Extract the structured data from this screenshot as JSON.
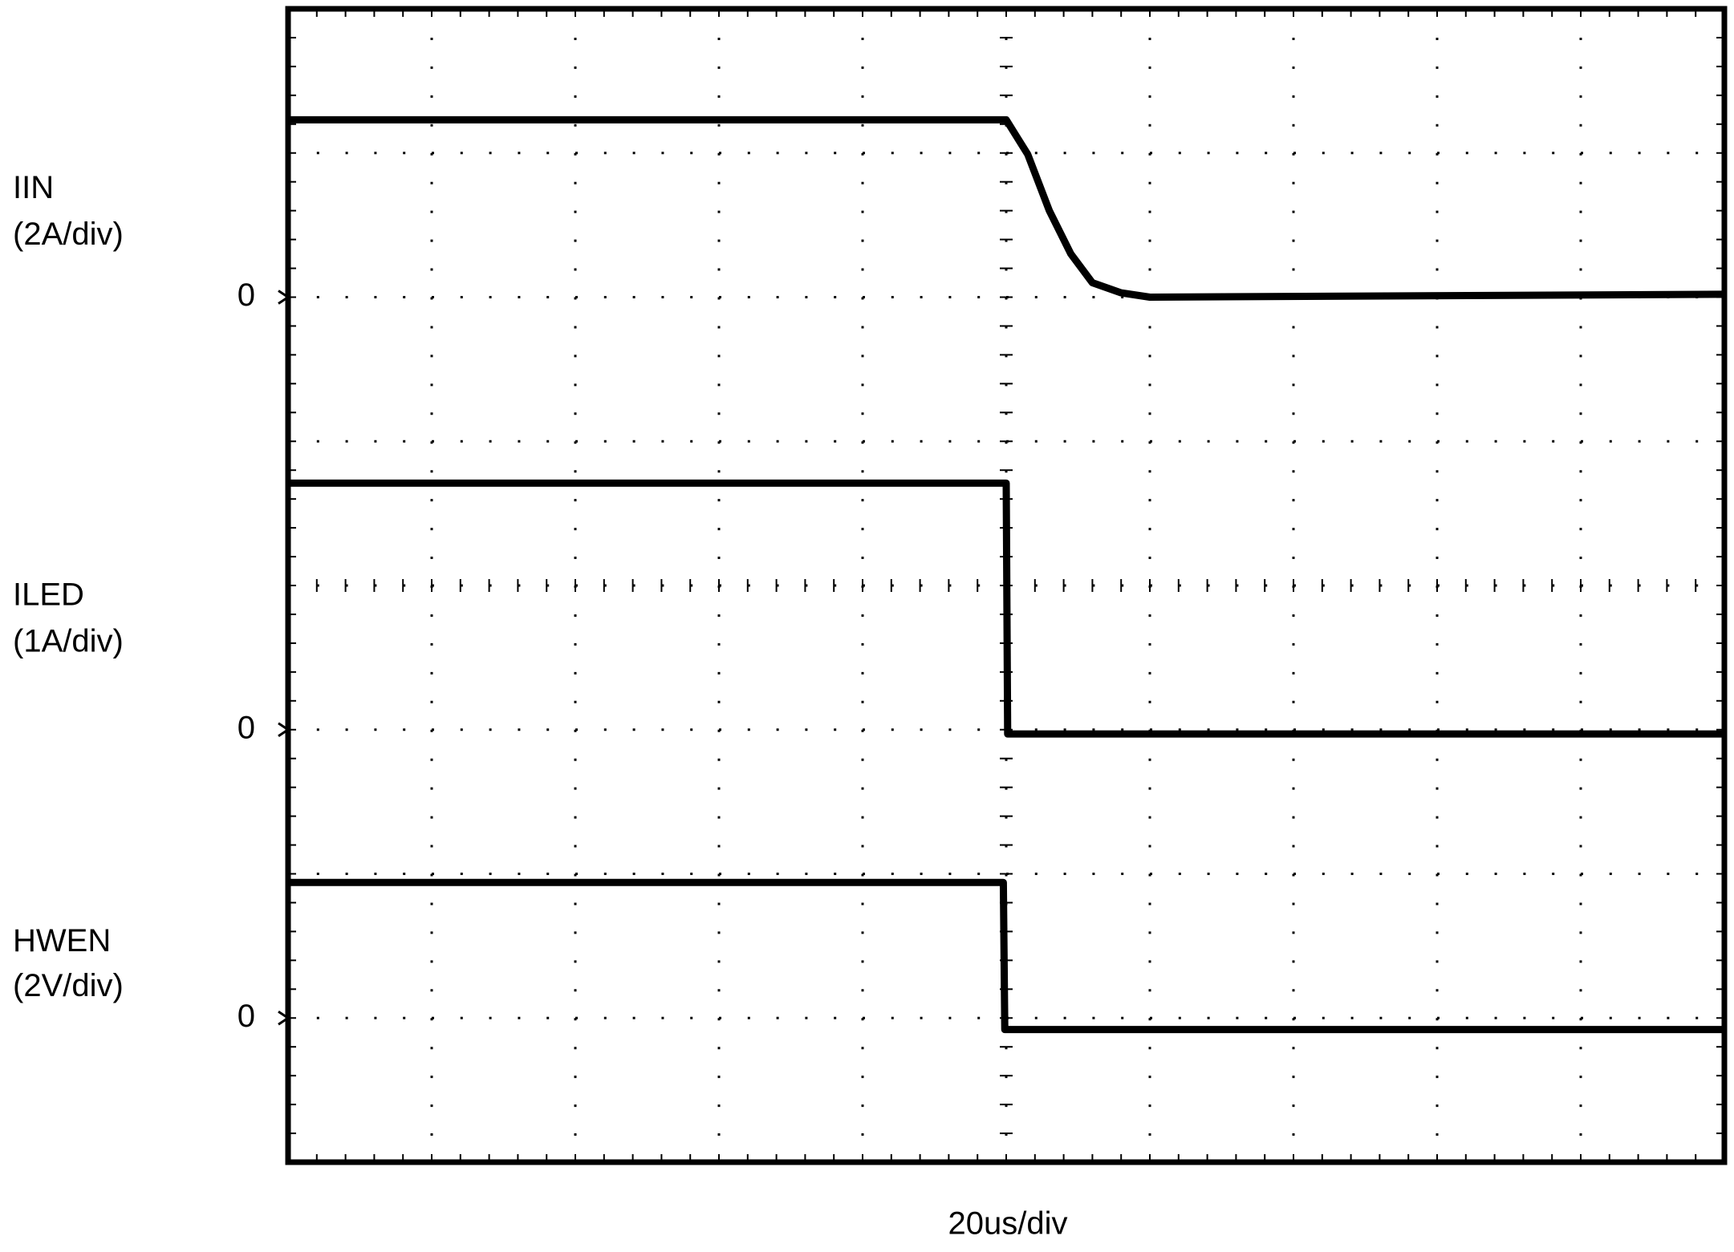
{
  "chart_data": {
    "type": "line",
    "x_label": "20us/div",
    "xlim": [
      0,
      10
    ],
    "ylim": [
      0,
      8
    ],
    "grid": true,
    "yticks": [
      {
        "value": 6,
        "label": "0"
      },
      {
        "value": 3,
        "label": "0"
      },
      {
        "value": 1,
        "label": "0"
      }
    ],
    "series": [
      {
        "name": "IIN",
        "scale": "(2A/div)",
        "color": "#000000",
        "x": [
          0,
          5,
          5.15,
          5.3,
          5.45,
          5.6,
          5.8,
          6,
          10
        ],
        "values": [
          7.23,
          7.23,
          6.99,
          6.6,
          6.3,
          6.1,
          6.03,
          6.0,
          6.02
        ]
      },
      {
        "name": "ILED",
        "scale": "(1A/div)",
        "color": "#000000",
        "x": [
          0,
          5.0,
          5.01,
          10
        ],
        "values": [
          4.71,
          4.71,
          2.97,
          2.97
        ]
      },
      {
        "name": "HWEN",
        "scale": "(2V/div)",
        "color": "#000000",
        "x": [
          0,
          4.98,
          4.99,
          10
        ],
        "values": [
          1.94,
          1.94,
          0.92,
          0.92
        ]
      }
    ]
  }
}
